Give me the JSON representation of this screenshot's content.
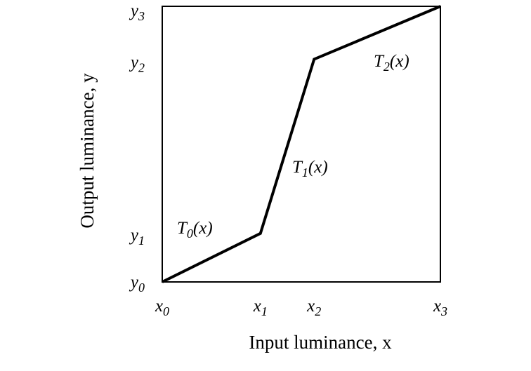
{
  "figure": {
    "xlabel": "Input luminance, x",
    "ylabel": "Output luminance, y",
    "x_ticks": [
      {
        "base": "x",
        "sub": "0"
      },
      {
        "base": "x",
        "sub": "1"
      },
      {
        "base": "x",
        "sub": "2"
      },
      {
        "base": "x",
        "sub": "3"
      }
    ],
    "y_ticks": [
      {
        "base": "y",
        "sub": "0"
      },
      {
        "base": "y",
        "sub": "1"
      },
      {
        "base": "y",
        "sub": "2"
      },
      {
        "base": "y",
        "sub": "3"
      }
    ],
    "points": [
      {
        "x": 0,
        "y": 0
      },
      {
        "x": 0.353,
        "y": 0.176
      },
      {
        "x": 0.546,
        "y": 0.808
      },
      {
        "x": 1,
        "y": 1
      }
    ],
    "segments": [
      {
        "base": "T",
        "sub": "0",
        "suffix": "(x)"
      },
      {
        "base": "T",
        "sub": "1",
        "suffix": "(x)"
      },
      {
        "base": "T",
        "sub": "2",
        "suffix": "(x)"
      }
    ],
    "colors": {
      "line": "#000000",
      "frame": "#000000",
      "background": "#ffffff"
    }
  }
}
